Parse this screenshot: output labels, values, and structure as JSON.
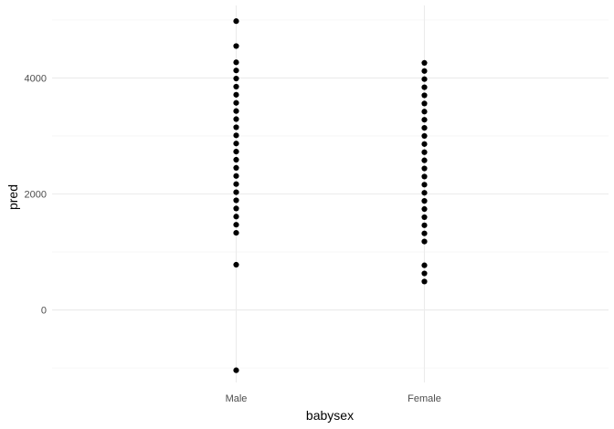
{
  "chart_data": {
    "type": "scatter",
    "xlabel": "babysex",
    "ylabel": "pred",
    "categories": [
      "Male",
      "Female"
    ],
    "ylim": [
      -1250,
      5250
    ],
    "y_ticks": [
      0,
      2000,
      4000
    ],
    "y_tick_labels": [
      "0",
      "2000",
      "4000"
    ],
    "grid": true,
    "series": [
      {
        "category": "Male",
        "values": [
          4980,
          4550,
          4270,
          4130,
          3990,
          3850,
          3710,
          3570,
          3430,
          3290,
          3150,
          3010,
          2870,
          2730,
          2590,
          2450,
          2310,
          2170,
          2030,
          1890,
          1750,
          1610,
          1470,
          1330,
          780,
          -1040
        ]
      },
      {
        "category": "Female",
        "values": [
          4260,
          4120,
          3980,
          3840,
          3700,
          3560,
          3420,
          3280,
          3140,
          3000,
          2860,
          2720,
          2580,
          2440,
          2300,
          2160,
          2020,
          1880,
          1740,
          1600,
          1460,
          1320,
          1180,
          770,
          630,
          490
        ]
      }
    ]
  }
}
